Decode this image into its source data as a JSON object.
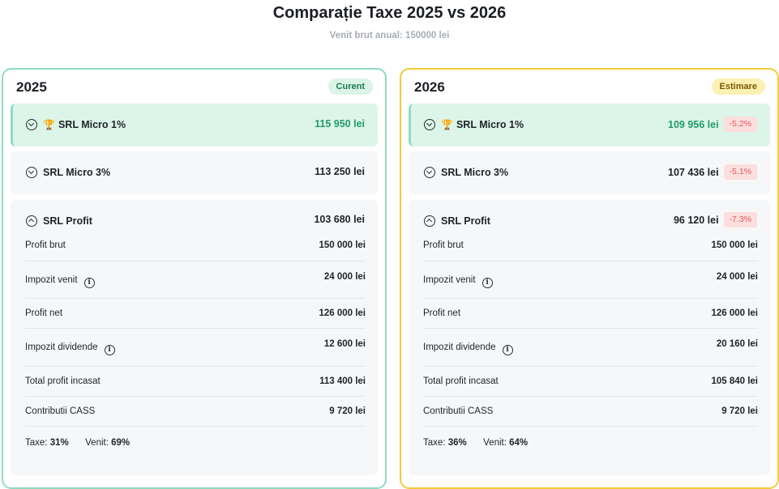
{
  "title": "Comparație Taxe 2025 vs 2026",
  "subtitle": "Venit brut anual: 150000 lei",
  "icons": [
    "chevron-down-icon",
    "chevron-up-icon",
    "trophy-icon",
    "info-icon"
  ],
  "colors": {
    "card_2025_border": "#8fdcc0",
    "card_2026_border": "#f3cb3a",
    "best_bg": "#dcf5e8",
    "best_value": "#239b6a",
    "diff_bg": "#fcdede",
    "diff_text": "#e05a5a"
  },
  "columns": [
    {
      "year": "2025",
      "badge": "Curent",
      "options": [
        {
          "name": "SRL Micro 1%",
          "value": "115 950 lei",
          "diff": ""
        },
        {
          "name": "SRL Micro 3%",
          "value": "113 250 lei",
          "diff": ""
        },
        {
          "name": "SRL Profit",
          "value": "103 680 lei",
          "diff": ""
        }
      ],
      "details": [
        {
          "label": "Profit brut",
          "value": "150 000 lei"
        },
        {
          "label": "Impozit venit",
          "value": "24 000 lei"
        },
        {
          "label": "Profit net",
          "value": "126 000 lei"
        },
        {
          "label": "Impozit dividende",
          "value": "12 600 lei"
        },
        {
          "label": "Total profit incasat",
          "value": "113 400 lei"
        },
        {
          "label": "Contributii CASS",
          "value": "9 720 lei"
        }
      ],
      "summary": {
        "taxe_label": "Taxe:",
        "taxe": "31%",
        "venit_label": "Venit:",
        "venit": "69%"
      }
    },
    {
      "year": "2026",
      "badge": "Estimare",
      "options": [
        {
          "name": "SRL Micro 1%",
          "value": "109 956 lei",
          "diff": "-5.2%"
        },
        {
          "name": "SRL Micro 3%",
          "value": "107 436 lei",
          "diff": "-5.1%"
        },
        {
          "name": "SRL Profit",
          "value": "96 120 lei",
          "diff": "-7.3%"
        }
      ],
      "details": [
        {
          "label": "Profit brut",
          "value": "150 000 lei"
        },
        {
          "label": "Impozit venit",
          "value": "24 000 lei"
        },
        {
          "label": "Profit net",
          "value": "126 000 lei"
        },
        {
          "label": "Impozit dividende",
          "value": "20 160 lei"
        },
        {
          "label": "Total profit incasat",
          "value": "105 840 lei"
        },
        {
          "label": "Contributii CASS",
          "value": "9 720 lei"
        }
      ],
      "summary": {
        "taxe_label": "Taxe:",
        "taxe": "36%",
        "venit_label": "Venit:",
        "venit": "64%"
      }
    }
  ]
}
